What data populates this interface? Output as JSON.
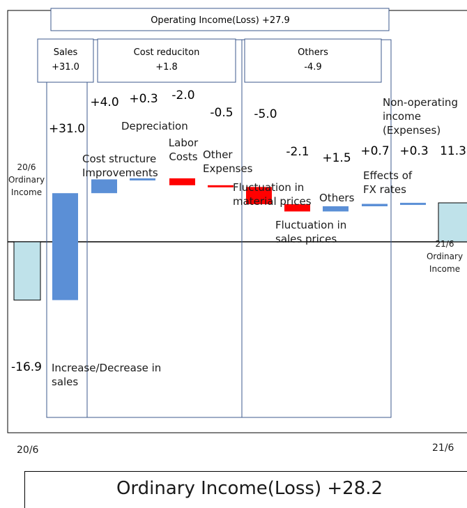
{
  "header": {
    "operating_income": "Operating Income(Loss)  +27.9",
    "sales": {
      "title": "Sales",
      "value": "+31.0"
    },
    "cost_reduction": {
      "title": "Cost reduciton",
      "value": "+1.8"
    },
    "others": {
      "title": "Others",
      "value": "-4.9"
    }
  },
  "chart_data": {
    "type": "bar",
    "subtype": "waterfall",
    "categories": [
      "20/6 Ordinary Income",
      "Increase/Decrease in sales",
      "Cost structure Improvements",
      "Depreciation",
      "Labor Costs",
      "Other Expenses",
      "Fluctuation in material prices",
      "Fluctuation in sales prices",
      "Others",
      "Effects of FX rates",
      "Non-operating income (Expenses)",
      "21/6 Ordinary Income"
    ],
    "values": [
      -16.9,
      31.0,
      4.0,
      0.3,
      -2.0,
      -0.5,
      -5.0,
      -2.1,
      1.5,
      0.7,
      0.3,
      11.3
    ],
    "value_labels": [
      "-16.9",
      "+31.0",
      "+4.0",
      "+0.3",
      "-2.0",
      "-0.5",
      "-5.0",
      "-2.1",
      "+1.5",
      "+0.7",
      "+0.3",
      "11.3"
    ],
    "bar_kind": [
      "total",
      "delta",
      "delta",
      "delta",
      "delta",
      "delta",
      "delta",
      "delta",
      "delta",
      "delta",
      "delta",
      "total"
    ],
    "x_start_label": "20/6",
    "x_end_label": "21/6",
    "colors": {
      "total": "#bfe2ea",
      "increase": "#5b8fd6",
      "decrease": "#ff0000",
      "line": "#000000",
      "box": "#3c5a8c"
    }
  },
  "footer": {
    "ordinary_income": "Ordinary Income(Loss)  +28.2"
  }
}
